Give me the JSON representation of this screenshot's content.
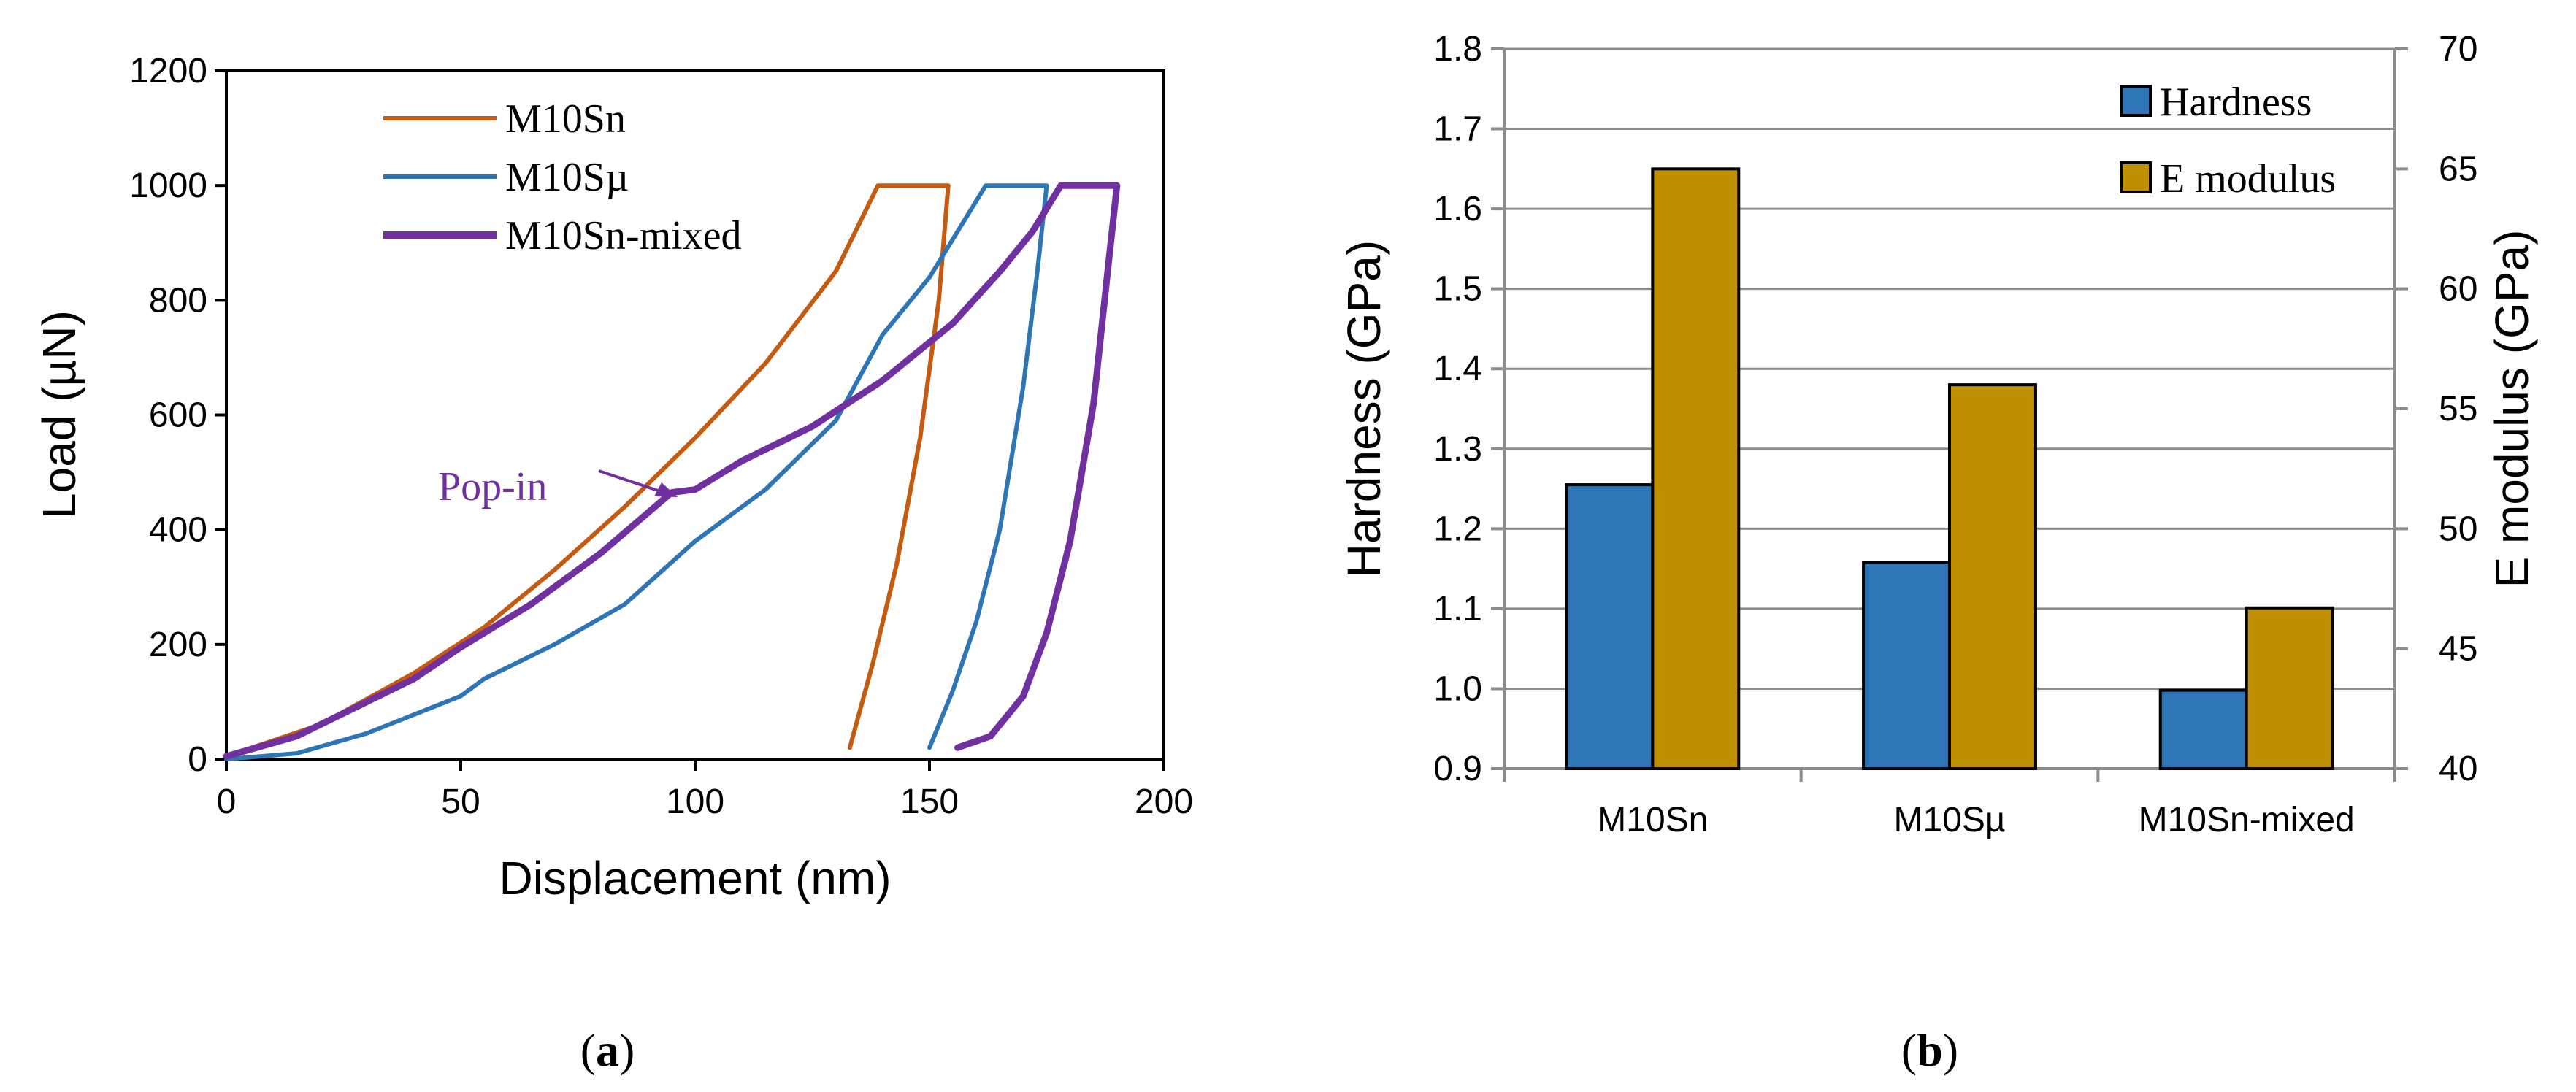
{
  "chart_data": [
    {
      "panel_label": "(a)",
      "panel_letter": "a",
      "type": "line",
      "xlabel": "Displacement (nm)",
      "ylabel": "Load (µN)",
      "xlim": [
        0,
        200
      ],
      "ylim": [
        0,
        1200
      ],
      "xticks": [
        0,
        50,
        100,
        150,
        200
      ],
      "yticks": [
        0,
        200,
        400,
        600,
        800,
        1000,
        1200
      ],
      "annotation": {
        "text": "Pop-in",
        "target": [
          95,
          460
        ]
      },
      "series": [
        {
          "name": "M10Sn",
          "color": "#C55A11",
          "points": [
            [
              0,
              5
            ],
            [
              20,
              60
            ],
            [
              40,
              150
            ],
            [
              55,
              230
            ],
            [
              70,
              330
            ],
            [
              85,
              440
            ],
            [
              100,
              560
            ],
            [
              115,
              690
            ],
            [
              130,
              850
            ],
            [
              139,
              1000
            ],
            [
              154,
              1000
            ],
            [
              152,
              800
            ],
            [
              148,
              560
            ],
            [
              143,
              340
            ],
            [
              138,
              170
            ],
            [
              133,
              20
            ]
          ]
        },
        {
          "name": "M10Sµ",
          "color": "#2E75B6",
          "points": [
            [
              0,
              0
            ],
            [
              15,
              10
            ],
            [
              30,
              45
            ],
            [
              50,
              110
            ],
            [
              55,
              140
            ],
            [
              70,
              200
            ],
            [
              85,
              270
            ],
            [
              100,
              380
            ],
            [
              115,
              470
            ],
            [
              130,
              590
            ],
            [
              140,
              740
            ],
            [
              150,
              840
            ],
            [
              162,
              1000
            ],
            [
              175,
              1000
            ],
            [
              173,
              850
            ],
            [
              170,
              650
            ],
            [
              165,
              400
            ],
            [
              160,
              240
            ],
            [
              155,
              120
            ],
            [
              150,
              20
            ]
          ]
        },
        {
          "name": "M10Sn-mixed",
          "color": "#7030A0",
          "points": [
            [
              0,
              5
            ],
            [
              15,
              40
            ],
            [
              30,
              100
            ],
            [
              40,
              140
            ],
            [
              50,
              195
            ],
            [
              65,
              270
            ],
            [
              80,
              360
            ],
            [
              95,
              465
            ],
            [
              100,
              470
            ],
            [
              110,
              520
            ],
            [
              125,
              580
            ],
            [
              140,
              660
            ],
            [
              155,
              760
            ],
            [
              165,
              850
            ],
            [
              172,
              920
            ],
            [
              178,
              1000
            ],
            [
              190,
              1000
            ],
            [
              188,
              850
            ],
            [
              185,
              620
            ],
            [
              180,
              380
            ],
            [
              175,
              220
            ],
            [
              170,
              110
            ],
            [
              163,
              40
            ],
            [
              156,
              20
            ]
          ]
        }
      ]
    },
    {
      "panel_label": "(b)",
      "panel_letter": "b",
      "type": "bar",
      "categories": [
        "M10Sn",
        "M10Sµ",
        "M10Sn-mixed"
      ],
      "ylabel": "Hardness (GPa)",
      "ylim": [
        0.9,
        1.8
      ],
      "yticks": [
        "0.9",
        "1.0",
        "1.1",
        "1.2",
        "1.3",
        "1.4",
        "1.5",
        "1.6",
        "1.7",
        "1.8"
      ],
      "y2label": "E modulus (GPa)",
      "y2lim": [
        40,
        70
      ],
      "y2ticks": [
        "40",
        "45",
        "50",
        "55",
        "60",
        "65",
        "70"
      ],
      "legend_position": "top-right",
      "grid": true,
      "series": [
        {
          "name": "Hardness",
          "axis": "left",
          "color": "#2E75B6",
          "values": [
            1.255,
            1.158,
            0.998
          ]
        },
        {
          "name": "E modulus",
          "axis": "right",
          "color": "#BF9000",
          "values": [
            65,
            56,
            46.7
          ]
        }
      ]
    }
  ]
}
